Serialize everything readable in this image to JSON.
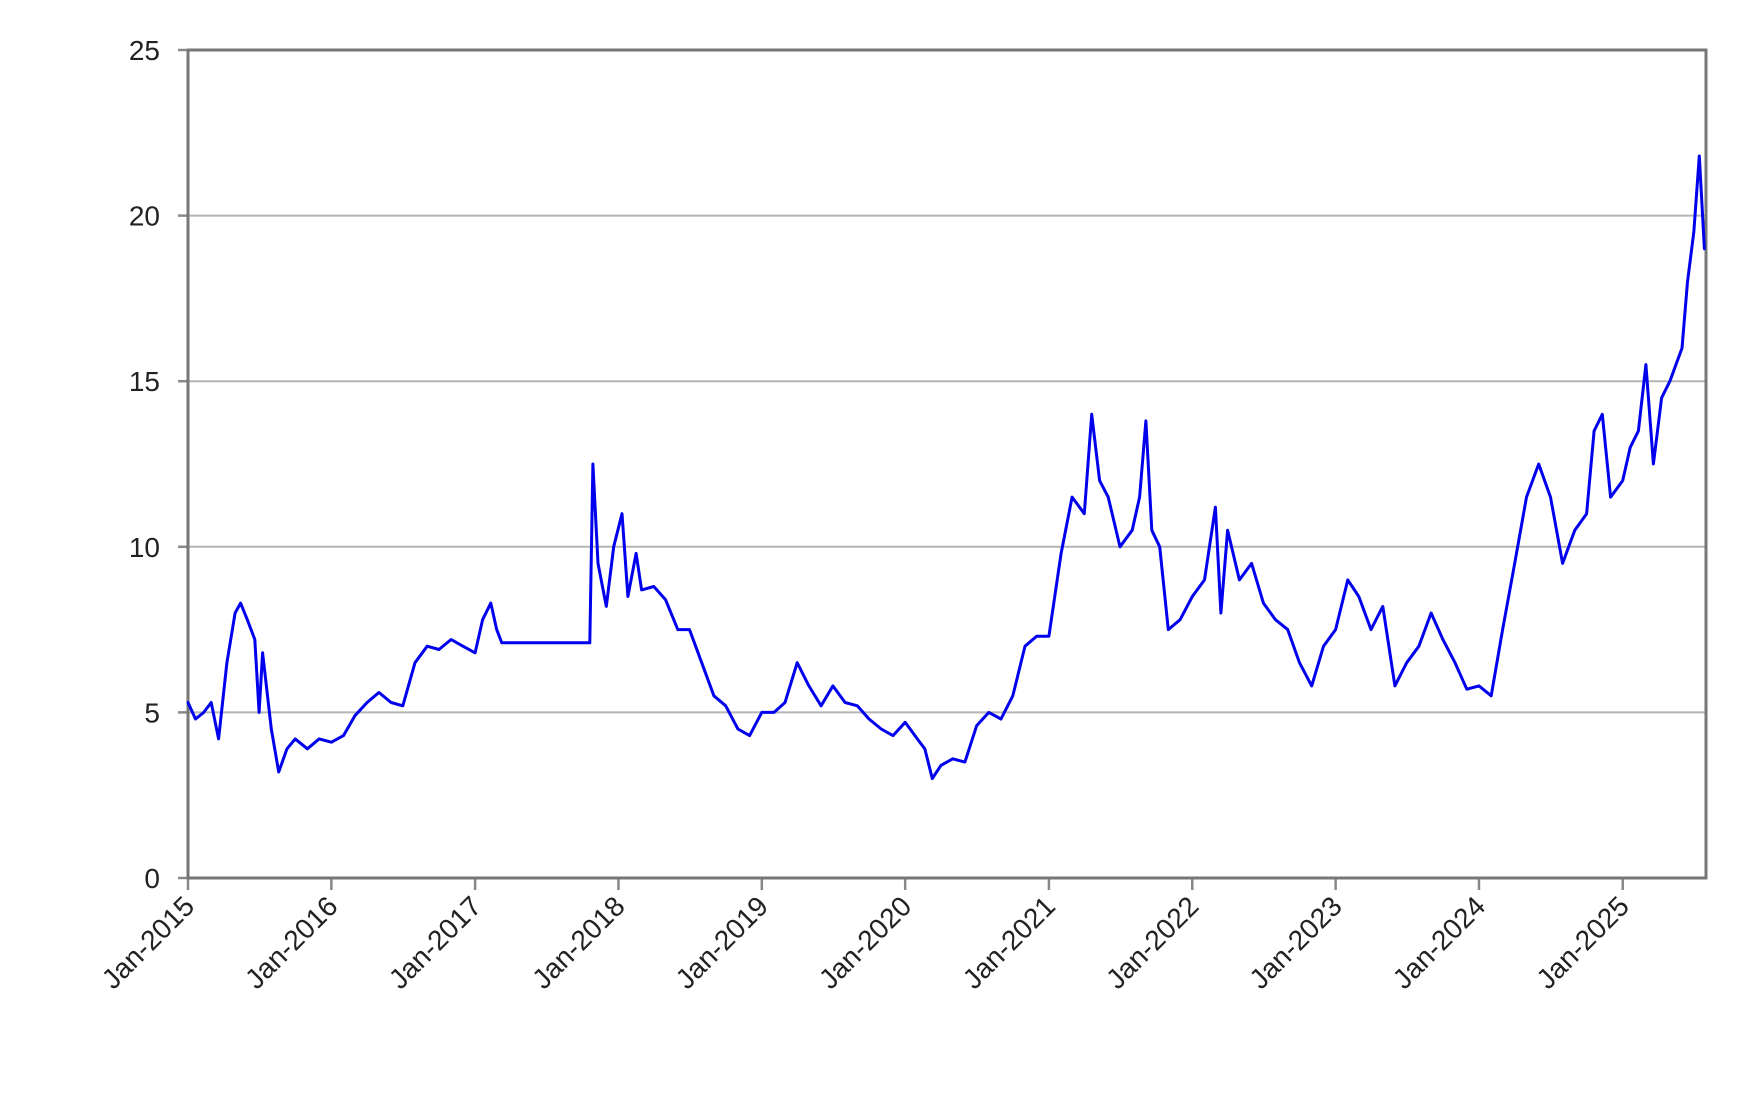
{
  "chart_data": {
    "type": "line",
    "title": "",
    "xlabel": "",
    "ylabel": "",
    "ylim": [
      0,
      25
    ],
    "yticks": [
      "0",
      "5",
      "10",
      "15",
      "20",
      "25"
    ],
    "x_range": [
      "2015-01-01",
      "2025-08-01"
    ],
    "xticks": [
      {
        "date": "2015-01-01",
        "label": "Jan-2015"
      },
      {
        "date": "2016-01-01",
        "label": "Jan-2016"
      },
      {
        "date": "2017-01-01",
        "label": "Jan-2017"
      },
      {
        "date": "2018-01-01",
        "label": "Jan-2018"
      },
      {
        "date": "2019-01-01",
        "label": "Jan-2019"
      },
      {
        "date": "2020-01-01",
        "label": "Jan-2020"
      },
      {
        "date": "2021-01-01",
        "label": "Jan-2021"
      },
      {
        "date": "2022-01-01",
        "label": "Jan-2022"
      },
      {
        "date": "2023-01-01",
        "label": "Jan-2023"
      },
      {
        "date": "2024-01-01",
        "label": "Jan-2024"
      },
      {
        "date": "2025-01-01",
        "label": "Jan-2025"
      }
    ],
    "grid": "horizontal",
    "legend": "none",
    "series": [
      {
        "color": "#0000ee",
        "points": [
          [
            "2015-01-01",
            5.3
          ],
          [
            "2015-01-20",
            4.8
          ],
          [
            "2015-02-10",
            5.0
          ],
          [
            "2015-03-01",
            5.3
          ],
          [
            "2015-03-20",
            4.2
          ],
          [
            "2015-04-10",
            6.5
          ],
          [
            "2015-05-01",
            8.0
          ],
          [
            "2015-05-15",
            8.3
          ],
          [
            "2015-06-01",
            7.8
          ],
          [
            "2015-06-20",
            7.2
          ],
          [
            "2015-07-01",
            5.0
          ],
          [
            "2015-07-10",
            6.8
          ],
          [
            "2015-08-01",
            4.5
          ],
          [
            "2015-08-20",
            3.2
          ],
          [
            "2015-09-10",
            3.9
          ],
          [
            "2015-10-01",
            4.2
          ],
          [
            "2015-11-01",
            3.9
          ],
          [
            "2015-12-01",
            4.2
          ],
          [
            "2016-01-01",
            4.1
          ],
          [
            "2016-02-01",
            4.3
          ],
          [
            "2016-03-01",
            4.9
          ],
          [
            "2016-04-01",
            5.3
          ],
          [
            "2016-05-01",
            5.6
          ],
          [
            "2016-06-01",
            5.3
          ],
          [
            "2016-07-01",
            5.2
          ],
          [
            "2016-08-01",
            6.5
          ],
          [
            "2016-09-01",
            7.0
          ],
          [
            "2016-10-01",
            6.9
          ],
          [
            "2016-11-01",
            7.2
          ],
          [
            "2016-12-01",
            7.0
          ],
          [
            "2017-01-01",
            6.8
          ],
          [
            "2017-01-20",
            7.8
          ],
          [
            "2017-02-10",
            8.3
          ],
          [
            "2017-02-25",
            7.5
          ],
          [
            "2017-03-10",
            7.1
          ],
          [
            "2017-05-01",
            7.1
          ],
          [
            "2017-07-01",
            7.1
          ],
          [
            "2017-09-01",
            7.1
          ],
          [
            "2017-10-20",
            7.1
          ],
          [
            "2017-10-28",
            12.5
          ],
          [
            "2017-11-10",
            9.5
          ],
          [
            "2017-12-01",
            8.2
          ],
          [
            "2017-12-20",
            10.0
          ],
          [
            "2018-01-10",
            11.0
          ],
          [
            "2018-01-25",
            8.5
          ],
          [
            "2018-02-15",
            9.8
          ],
          [
            "2018-03-01",
            8.7
          ],
          [
            "2018-04-01",
            8.8
          ],
          [
            "2018-05-01",
            8.4
          ],
          [
            "2018-06-01",
            7.5
          ],
          [
            "2018-07-01",
            7.5
          ],
          [
            "2018-08-01",
            6.5
          ],
          [
            "2018-09-01",
            5.5
          ],
          [
            "2018-10-01",
            5.2
          ],
          [
            "2018-11-01",
            4.5
          ],
          [
            "2018-12-01",
            4.3
          ],
          [
            "2019-01-01",
            5.0
          ],
          [
            "2019-02-01",
            5.0
          ],
          [
            "2019-03-01",
            5.3
          ],
          [
            "2019-04-01",
            6.5
          ],
          [
            "2019-05-01",
            5.8
          ],
          [
            "2019-06-01",
            5.2
          ],
          [
            "2019-07-01",
            5.8
          ],
          [
            "2019-08-01",
            5.3
          ],
          [
            "2019-09-01",
            5.2
          ],
          [
            "2019-10-01",
            4.8
          ],
          [
            "2019-11-01",
            4.5
          ],
          [
            "2019-12-01",
            4.3
          ],
          [
            "2020-01-01",
            4.7
          ],
          [
            "2020-02-01",
            4.2
          ],
          [
            "2020-02-20",
            3.9
          ],
          [
            "2020-03-10",
            3.0
          ],
          [
            "2020-04-01",
            3.4
          ],
          [
            "2020-05-01",
            3.6
          ],
          [
            "2020-06-01",
            3.5
          ],
          [
            "2020-07-01",
            4.6
          ],
          [
            "2020-08-01",
            5.0
          ],
          [
            "2020-09-01",
            4.8
          ],
          [
            "2020-10-01",
            5.5
          ],
          [
            "2020-11-01",
            7.0
          ],
          [
            "2020-12-01",
            7.3
          ],
          [
            "2021-01-01",
            7.3
          ],
          [
            "2021-02-01",
            9.8
          ],
          [
            "2021-03-01",
            11.5
          ],
          [
            "2021-04-01",
            11.0
          ],
          [
            "2021-04-20",
            14.0
          ],
          [
            "2021-05-10",
            12.0
          ],
          [
            "2021-06-01",
            11.5
          ],
          [
            "2021-07-01",
            10.0
          ],
          [
            "2021-08-01",
            10.5
          ],
          [
            "2021-08-20",
            11.5
          ],
          [
            "2021-09-05",
            13.8
          ],
          [
            "2021-09-20",
            10.5
          ],
          [
            "2021-10-10",
            10.0
          ],
          [
            "2021-11-01",
            7.5
          ],
          [
            "2021-12-01",
            7.8
          ],
          [
            "2022-01-01",
            8.5
          ],
          [
            "2022-02-01",
            9.0
          ],
          [
            "2022-03-01",
            11.2
          ],
          [
            "2022-03-15",
            8.0
          ],
          [
            "2022-04-01",
            10.5
          ],
          [
            "2022-05-01",
            9.0
          ],
          [
            "2022-06-01",
            9.5
          ],
          [
            "2022-07-01",
            8.3
          ],
          [
            "2022-08-01",
            7.8
          ],
          [
            "2022-09-01",
            7.5
          ],
          [
            "2022-10-01",
            6.5
          ],
          [
            "2022-11-01",
            5.8
          ],
          [
            "2022-12-01",
            7.0
          ],
          [
            "2023-01-01",
            7.5
          ],
          [
            "2023-02-01",
            9.0
          ],
          [
            "2023-03-01",
            8.5
          ],
          [
            "2023-04-01",
            7.5
          ],
          [
            "2023-05-01",
            8.2
          ],
          [
            "2023-06-01",
            5.8
          ],
          [
            "2023-07-01",
            6.5
          ],
          [
            "2023-08-01",
            7.0
          ],
          [
            "2023-09-01",
            8.0
          ],
          [
            "2023-10-01",
            7.2
          ],
          [
            "2023-11-01",
            6.5
          ],
          [
            "2023-12-01",
            5.7
          ],
          [
            "2024-01-01",
            5.8
          ],
          [
            "2024-02-01",
            5.5
          ],
          [
            "2024-03-01",
            7.5
          ],
          [
            "2024-04-01",
            9.5
          ],
          [
            "2024-05-01",
            11.5
          ],
          [
            "2024-06-01",
            12.5
          ],
          [
            "2024-07-01",
            11.5
          ],
          [
            "2024-08-01",
            9.5
          ],
          [
            "2024-09-01",
            10.5
          ],
          [
            "2024-10-01",
            11.0
          ],
          [
            "2024-10-20",
            13.5
          ],
          [
            "2024-11-10",
            14.0
          ],
          [
            "2024-12-01",
            11.5
          ],
          [
            "2025-01-01",
            12.0
          ],
          [
            "2025-01-20",
            13.0
          ],
          [
            "2025-02-10",
            13.5
          ],
          [
            "2025-03-01",
            15.5
          ],
          [
            "2025-03-20",
            12.5
          ],
          [
            "2025-04-10",
            14.5
          ],
          [
            "2025-05-01",
            15.0
          ],
          [
            "2025-06-01",
            16.0
          ],
          [
            "2025-06-15",
            18.0
          ],
          [
            "2025-07-01",
            19.5
          ],
          [
            "2025-07-15",
            21.8
          ],
          [
            "2025-07-28",
            19.0
          ]
        ]
      }
    ]
  }
}
